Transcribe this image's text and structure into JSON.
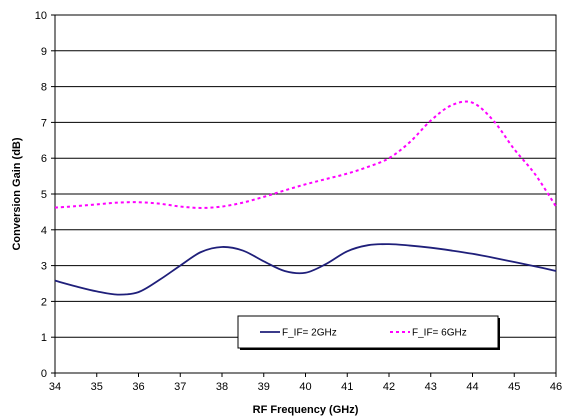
{
  "chart_data": {
    "type": "line",
    "xlabel": "RF Frequency (GHz)",
    "ylabel": "Conversion Gain (dB)",
    "xlim": [
      34,
      46
    ],
    "ylim": [
      0,
      10
    ],
    "xticks": [
      34,
      35,
      36,
      37,
      38,
      39,
      40,
      41,
      42,
      43,
      44,
      45,
      46
    ],
    "yticks": [
      0,
      1,
      2,
      3,
      4,
      5,
      6,
      7,
      8,
      9,
      10
    ],
    "grid": "horizontal",
    "legend_position": "bottom-right inside plot",
    "series": [
      {
        "name": "F_IF= 2GHz",
        "color": "#1f1f7a",
        "line_style": "solid",
        "x": [
          34,
          34.5,
          35,
          35.5,
          36,
          36.5,
          37,
          37.5,
          38,
          38.5,
          39,
          39.5,
          40,
          40.5,
          41,
          41.5,
          42,
          42.5,
          43,
          43.5,
          44,
          44.5,
          45,
          45.5,
          46
        ],
        "y": [
          2.58,
          2.42,
          2.28,
          2.19,
          2.26,
          2.6,
          3.0,
          3.38,
          3.52,
          3.42,
          3.12,
          2.85,
          2.8,
          3.05,
          3.4,
          3.57,
          3.6,
          3.56,
          3.5,
          3.42,
          3.33,
          3.22,
          3.1,
          2.98,
          2.85
        ]
      },
      {
        "name": "F_IF= 6GHz",
        "color": "#ff00ff",
        "line_style": "dashed",
        "x": [
          34,
          34.5,
          35,
          35.5,
          36,
          36.5,
          37,
          37.5,
          38,
          38.5,
          39,
          39.5,
          40,
          40.5,
          41,
          41.5,
          42,
          42.5,
          43,
          43.5,
          44,
          44.5,
          45,
          45.5,
          46
        ],
        "y": [
          4.62,
          4.66,
          4.71,
          4.76,
          4.77,
          4.73,
          4.65,
          4.61,
          4.65,
          4.76,
          4.92,
          5.1,
          5.27,
          5.42,
          5.57,
          5.76,
          6.0,
          6.45,
          7.05,
          7.48,
          7.55,
          7.05,
          6.25,
          5.55,
          4.65
        ]
      }
    ]
  }
}
